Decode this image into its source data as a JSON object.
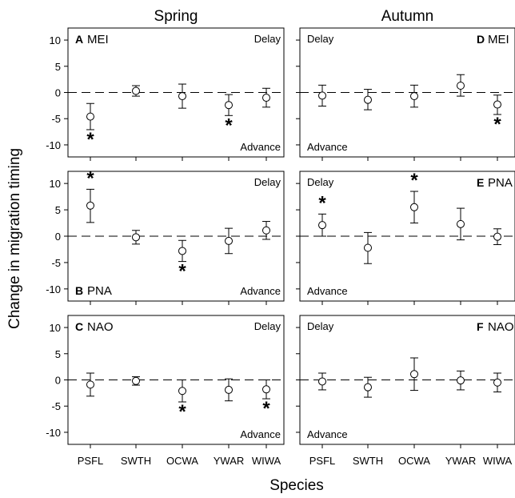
{
  "figure": {
    "y_axis_label": "Change in migration timing",
    "x_axis_label": "Species"
  },
  "chart_data": [
    {
      "type": "scatter",
      "column_title": "Spring",
      "panel_letter": "A",
      "index_label": "MEI",
      "corner_labels": {
        "delay": "Delay",
        "advance": "Advance"
      },
      "categories": [
        "PSFL",
        "SWTH",
        "OCWA",
        "YWAR",
        "WIWA"
      ],
      "values": [
        -4.6,
        0.3,
        -0.7,
        -2.4,
        -1.0
      ],
      "error_low": [
        -7.1,
        -0.7,
        -3.0,
        -4.4,
        -2.8
      ],
      "error_high": [
        -2.1,
        1.3,
        1.6,
        -0.4,
        0.8
      ],
      "significant": [
        true,
        false,
        false,
        true,
        false
      ],
      "yticks": [
        10,
        5,
        0,
        -5,
        -10
      ],
      "ylim": [
        -12.3,
        12.3
      ],
      "reference_line": 0
    },
    {
      "type": "scatter",
      "column_title": "Autumn",
      "panel_letter": "D",
      "index_label": "MEI",
      "corner_labels": {
        "delay": "Delay",
        "advance": "Advance"
      },
      "categories": [
        "PSFL",
        "SWTH",
        "OCWA",
        "YWAR",
        "WIWA"
      ],
      "values": [
        -0.6,
        -1.4,
        -0.7,
        1.3,
        -2.3
      ],
      "error_low": [
        -2.6,
        -3.3,
        -2.8,
        -0.7,
        -4.2
      ],
      "error_high": [
        1.4,
        0.6,
        1.4,
        3.4,
        -0.5
      ],
      "significant": [
        false,
        false,
        false,
        false,
        true
      ],
      "yticks": [
        10,
        5,
        0,
        -5,
        -10
      ],
      "ylim": [
        -12.3,
        12.3
      ],
      "reference_line": 0
    },
    {
      "type": "scatter",
      "panel_letter": "B",
      "index_label": "PNA",
      "corner_labels": {
        "delay": "Delay",
        "advance": "Advance"
      },
      "categories": [
        "PSFL",
        "SWTH",
        "OCWA",
        "YWAR",
        "WIWA"
      ],
      "values": [
        5.8,
        -0.2,
        -2.8,
        -0.9,
        1.1
      ],
      "error_low": [
        2.6,
        -1.5,
        -4.8,
        -3.3,
        -0.6
      ],
      "error_high": [
        8.9,
        1.1,
        -0.8,
        1.5,
        2.8
      ],
      "significant": [
        true,
        false,
        true,
        false,
        false
      ],
      "yticks": [
        10,
        5,
        0,
        -5,
        -10
      ],
      "ylim": [
        -12.3,
        12.3
      ],
      "reference_line": 0
    },
    {
      "type": "scatter",
      "panel_letter": "E",
      "index_label": "PNA",
      "corner_labels": {
        "delay": "Delay",
        "advance": "Advance"
      },
      "categories": [
        "PSFL",
        "SWTH",
        "OCWA",
        "YWAR",
        "WIWA"
      ],
      "values": [
        2.1,
        -2.2,
        5.5,
        2.3,
        -0.1
      ],
      "error_low": [
        0.0,
        -5.2,
        2.5,
        -0.7,
        -1.6
      ],
      "error_high": [
        4.2,
        0.7,
        8.5,
        5.3,
        1.4
      ],
      "significant": [
        true,
        false,
        true,
        false,
        false
      ],
      "yticks": [
        10,
        5,
        0,
        -5,
        -10
      ],
      "ylim": [
        -12.3,
        12.3
      ],
      "reference_line": 0
    },
    {
      "type": "scatter",
      "panel_letter": "C",
      "index_label": "NAO",
      "corner_labels": {
        "delay": "Delay",
        "advance": "Advance"
      },
      "categories": [
        "PSFL",
        "SWTH",
        "OCWA",
        "YWAR",
        "WIWA"
      ],
      "values": [
        -0.9,
        -0.2,
        -2.1,
        -1.9,
        -1.8
      ],
      "error_low": [
        -3.1,
        -1.0,
        -4.2,
        -4.0,
        -3.6
      ],
      "error_high": [
        1.3,
        0.6,
        0.0,
        0.2,
        0.0
      ],
      "significant": [
        false,
        false,
        true,
        false,
        true
      ],
      "yticks": [
        10,
        5,
        0,
        -5,
        -10
      ],
      "ylim": [
        -12.3,
        12.3
      ],
      "reference_line": 0
    },
    {
      "type": "scatter",
      "panel_letter": "F",
      "index_label": "NAO",
      "corner_labels": {
        "delay": "Delay",
        "advance": "Advance"
      },
      "categories": [
        "PSFL",
        "SWTH",
        "OCWA",
        "YWAR",
        "WIWA"
      ],
      "values": [
        -0.3,
        -1.4,
        1.1,
        -0.1,
        -0.5
      ],
      "error_low": [
        -1.9,
        -3.3,
        -2.0,
        -1.9,
        -2.3
      ],
      "error_high": [
        1.3,
        0.5,
        4.2,
        1.7,
        1.3
      ],
      "significant": [
        false,
        false,
        false,
        false,
        false
      ],
      "yticks": [
        10,
        5,
        0,
        -5,
        -10
      ],
      "ylim": [
        -12.3,
        12.3
      ],
      "reference_line": 0
    }
  ]
}
